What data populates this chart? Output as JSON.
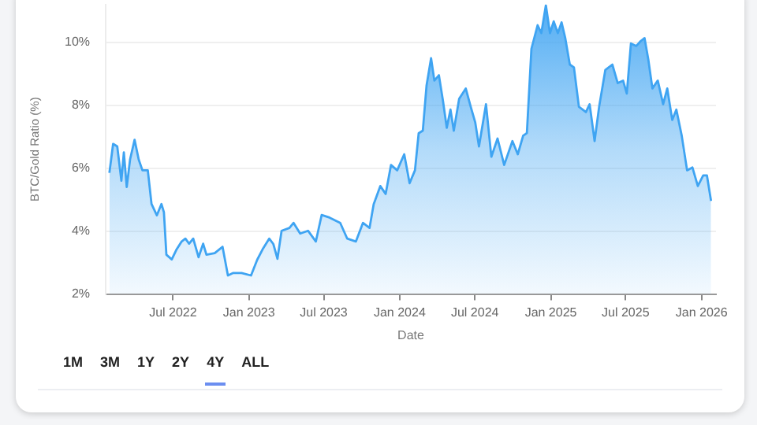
{
  "chart_data": {
    "type": "area",
    "xlabel": "Date",
    "ylabel": "BTC/Gold Ratio (%)",
    "annotations": [
      "1M",
      "3M",
      "1Y",
      "2Y",
      "4Y",
      "ALL"
    ],
    "x": [
      "2022-01-28",
      "2022-02-06",
      "2022-02-16",
      "2022-02-26",
      "2022-03-04",
      "2022-03-11",
      "2022-03-19",
      "2022-03-30",
      "2022-04-09",
      "2022-04-18",
      "2022-05-01",
      "2022-05-10",
      "2022-05-23",
      "2022-06-03",
      "2022-06-09",
      "2022-06-15",
      "2022-06-28",
      "2022-07-09",
      "2022-07-22",
      "2022-07-31",
      "2022-08-09",
      "2022-08-19",
      "2022-09-01",
      "2022-09-12",
      "2022-09-20",
      "2022-10-10",
      "2022-10-29",
      "2022-11-11",
      "2022-11-24",
      "2022-12-14",
      "2023-01-06",
      "2023-01-21",
      "2023-02-03",
      "2023-02-19",
      "2023-03-01",
      "2023-03-11",
      "2023-03-21",
      "2023-04-09",
      "2023-04-19",
      "2023-05-05",
      "2023-05-24",
      "2023-06-12",
      "2023-06-26",
      "2023-07-15",
      "2023-08-10",
      "2023-08-27",
      "2023-09-17",
      "2023-10-04",
      "2023-10-20",
      "2023-10-30",
      "2023-11-15",
      "2023-11-28",
      "2023-12-11",
      "2023-12-26",
      "2024-01-12",
      "2024-01-25",
      "2024-02-07",
      "2024-02-16",
      "2024-02-26",
      "2024-03-06",
      "2024-03-17",
      "2024-03-25",
      "2024-04-05",
      "2024-04-15",
      "2024-04-24",
      "2024-05-03",
      "2024-05-11",
      "2024-05-24",
      "2024-06-09",
      "2024-06-21",
      "2024-07-02",
      "2024-07-11",
      "2024-07-28",
      "2024-08-10",
      "2024-08-25",
      "2024-09-10",
      "2024-09-30",
      "2024-10-13",
      "2024-10-26",
      "2024-11-04",
      "2024-11-15",
      "2024-11-30",
      "2024-12-09",
      "2024-12-20",
      "2024-12-30",
      "2025-01-08",
      "2025-01-18",
      "2025-01-27",
      "2025-02-05",
      "2025-02-16",
      "2025-02-26",
      "2025-03-10",
      "2025-03-27",
      "2025-04-05",
      "2025-04-17",
      "2025-04-28",
      "2025-05-13",
      "2025-05-30",
      "2025-06-12",
      "2025-06-25",
      "2025-07-04",
      "2025-07-14",
      "2025-07-27",
      "2025-08-07",
      "2025-08-16",
      "2025-08-25",
      "2025-09-04",
      "2025-09-17",
      "2025-09-30",
      "2025-10-10",
      "2025-10-22",
      "2025-11-01",
      "2025-11-14",
      "2025-11-27",
      "2025-12-10",
      "2025-12-23",
      "2026-01-05",
      "2026-01-14",
      "2026-01-24"
    ],
    "series": [
      {
        "color": "#3fa4f2",
        "values": [
          5.85,
          6.77,
          6.69,
          5.6,
          6.5,
          5.4,
          6.27,
          6.9,
          6.27,
          5.93,
          5.93,
          4.86,
          4.5,
          4.86,
          4.6,
          3.25,
          3.1,
          3.4,
          3.67,
          3.76,
          3.6,
          3.76,
          3.17,
          3.6,
          3.25,
          3.3,
          3.5,
          2.59,
          2.67,
          2.67,
          2.59,
          3.09,
          3.42,
          3.76,
          3.59,
          3.12,
          4.01,
          4.1,
          4.26,
          3.92,
          4.01,
          3.67,
          4.51,
          4.43,
          4.26,
          3.76,
          3.67,
          4.26,
          4.1,
          4.85,
          5.43,
          5.18,
          6.1,
          5.93,
          6.44,
          5.52,
          5.93,
          7.11,
          7.19,
          8.62,
          9.49,
          8.78,
          8.95,
          8.12,
          7.28,
          7.86,
          7.19,
          8.2,
          8.53,
          7.95,
          7.45,
          6.69,
          8.03,
          6.36,
          6.94,
          6.1,
          6.86,
          6.44,
          7.03,
          7.11,
          9.79,
          10.54,
          10.29,
          11.17,
          10.29,
          10.66,
          10.29,
          10.63,
          10.13,
          9.29,
          9.2,
          7.95,
          7.78,
          8.03,
          6.86,
          7.95,
          9.12,
          9.29,
          8.7,
          8.78,
          8.37,
          9.96,
          9.88,
          10.04,
          10.13,
          9.46,
          8.53,
          8.78,
          8.03,
          8.53,
          7.53,
          7.86,
          7.03,
          5.93,
          6.02,
          5.43,
          5.77,
          5.77,
          4.96
        ]
      }
    ],
    "xlim": [
      "2022-01-19",
      "2026-02-05"
    ],
    "xticks": [
      {
        "value": "2022-07-01",
        "label": "Jul 2022"
      },
      {
        "value": "2023-01-01",
        "label": "Jan 2023"
      },
      {
        "value": "2023-07-01",
        "label": "Jul 2023"
      },
      {
        "value": "2024-01-01",
        "label": "Jan 2024"
      },
      {
        "value": "2024-07-01",
        "label": "Jul 2024"
      },
      {
        "value": "2025-01-01",
        "label": "Jan 2025"
      },
      {
        "value": "2025-07-01",
        "label": "Jul 2025"
      },
      {
        "value": "2026-01-01",
        "label": "Jan 2026"
      }
    ],
    "ylim": [
      2,
      11.2
    ],
    "yticks": [
      {
        "value": 2,
        "label": "2%"
      },
      {
        "value": 4,
        "label": "4%"
      },
      {
        "value": 6,
        "label": "6%"
      },
      {
        "value": 8,
        "label": "8%"
      },
      {
        "value": 10,
        "label": "10%"
      }
    ],
    "grid": "y",
    "legend": false,
    "marker": "none"
  }
}
